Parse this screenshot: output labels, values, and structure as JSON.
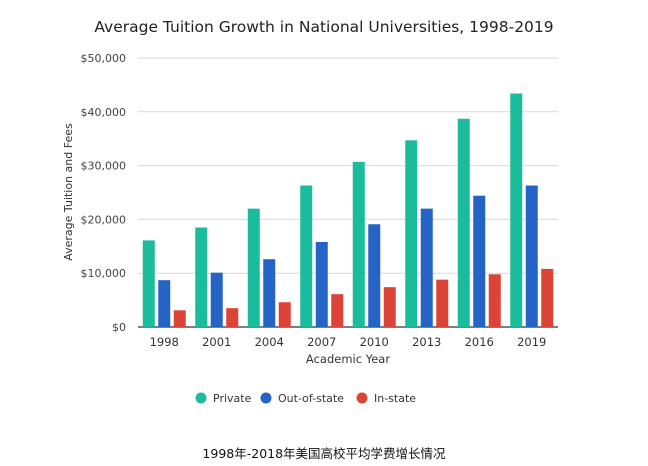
{
  "chart_data": {
    "type": "bar",
    "title": "Average Tuition Growth in National Universities, 1998-2019",
    "xlabel": "Academic Year",
    "ylabel": "Average Tuition and Fees",
    "categories": [
      "1998",
      "2001",
      "2004",
      "2007",
      "2010",
      "2013",
      "2016",
      "2019"
    ],
    "series": [
      {
        "name": "Private",
        "color": "#1abc9c",
        "values": [
          16100,
          18500,
          22000,
          26300,
          30700,
          34700,
          38700,
          43400
        ]
      },
      {
        "name": "Out-of-state",
        "color": "#2563c5",
        "values": [
          8700,
          10100,
          12600,
          15800,
          19100,
          22000,
          24400,
          26300
        ]
      },
      {
        "name": "In-state",
        "color": "#db4437",
        "values": [
          3100,
          3500,
          4600,
          6100,
          7400,
          8800,
          9800,
          10800
        ]
      }
    ],
    "ylim": [
      0,
      50000
    ],
    "yticks": [
      0,
      10000,
      20000,
      30000,
      40000,
      50000
    ],
    "ytick_labels": [
      "$0",
      "$10,000",
      "$20,000",
      "$30,000",
      "$40,000",
      "$50,000"
    ],
    "grid": true,
    "legend_position": "bottom"
  },
  "caption": "1998年-2018年美国高校平均学费增长情况"
}
